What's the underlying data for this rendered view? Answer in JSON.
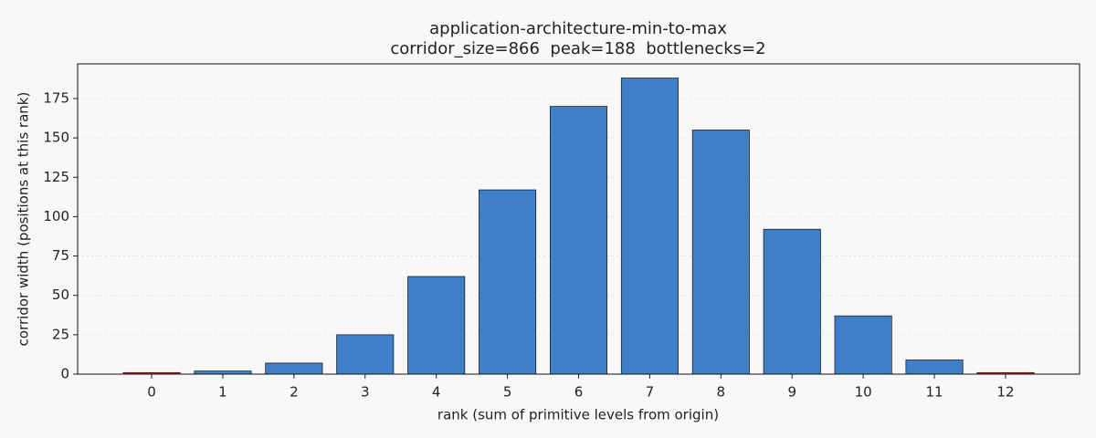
{
  "chart_data": {
    "type": "bar",
    "title": "application-architecture-min-to-max",
    "subtitle": "corridor_size=866  peak=188  bottlenecks=2",
    "x_label": "rank (sum of primitive levels from origin)",
    "y_label": "corridor width (positions at this rank)",
    "x": [
      0,
      1,
      2,
      3,
      4,
      5,
      6,
      7,
      8,
      9,
      10,
      11,
      12
    ],
    "values": [
      1,
      2,
      7,
      25,
      62,
      117,
      170,
      188,
      155,
      92,
      37,
      9,
      1
    ],
    "colors": [
      "#d62728",
      "#3f7fc8",
      "#3f7fc8",
      "#3f7fc8",
      "#3f7fc8",
      "#3f7fc8",
      "#3f7fc8",
      "#3f7fc8",
      "#3f7fc8",
      "#3f7fc8",
      "#3f7fc8",
      "#3f7fc8",
      "#d62728"
    ],
    "xlim": [
      -1.04,
      13.04
    ],
    "xticks": [
      0,
      1,
      2,
      3,
      4,
      5,
      6,
      7,
      8,
      9,
      10,
      11,
      12
    ],
    "ylim": [
      0,
      197
    ],
    "yticks": [
      0,
      25,
      50,
      75,
      100,
      125,
      150,
      175
    ],
    "grid": true
  }
}
